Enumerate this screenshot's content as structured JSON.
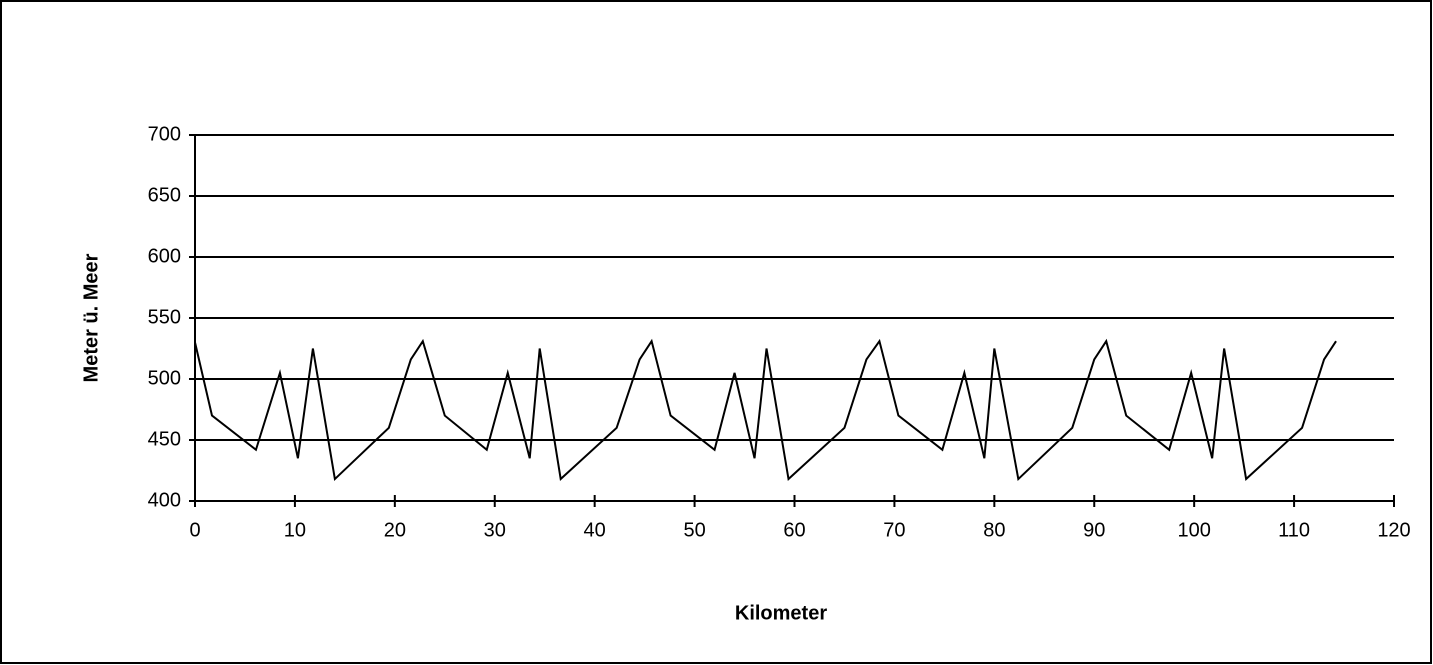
{
  "chart_data": {
    "type": "line",
    "x_label": "Kilometer",
    "y_label": "Meter ü. Meer",
    "x": [
      0,
      1.7,
      6.1,
      8.5,
      10.3,
      11.8,
      14,
      19.4,
      21.6,
      22.8,
      25,
      29.2,
      31.3,
      33.5,
      34.5,
      36.6,
      42.2,
      44.5,
      45.7,
      47.6,
      52,
      54,
      56,
      57.2,
      59.4,
      65,
      67.2,
      68.5,
      70.4,
      74.8,
      77,
      79,
      80,
      82.4,
      87.8,
      90,
      91.2,
      93.2,
      97.5,
      99.7,
      101.8,
      103,
      105.2,
      110.8,
      113,
      114.2
    ],
    "series": [
      {
        "name": null,
        "color": "#000000",
        "values": [
          530,
          470,
          442,
          505,
          435,
          525,
          418,
          460,
          516,
          531,
          470,
          442,
          505,
          435,
          525,
          418,
          460,
          516,
          531,
          470,
          442,
          505,
          435,
          525,
          418,
          460,
          516,
          531,
          470,
          442,
          505,
          435,
          525,
          418,
          460,
          516,
          531,
          470,
          442,
          505,
          435,
          525,
          418,
          460,
          516,
          531
        ]
      }
    ],
    "xlim": [
      0,
      120
    ],
    "xticks": [
      0,
      10,
      20,
      30,
      40,
      50,
      60,
      70,
      80,
      90,
      100,
      110,
      120
    ],
    "ylim": [
      400,
      700
    ],
    "yticks": [
      400,
      450,
      500,
      550,
      600,
      650,
      700
    ],
    "grid": true
  }
}
